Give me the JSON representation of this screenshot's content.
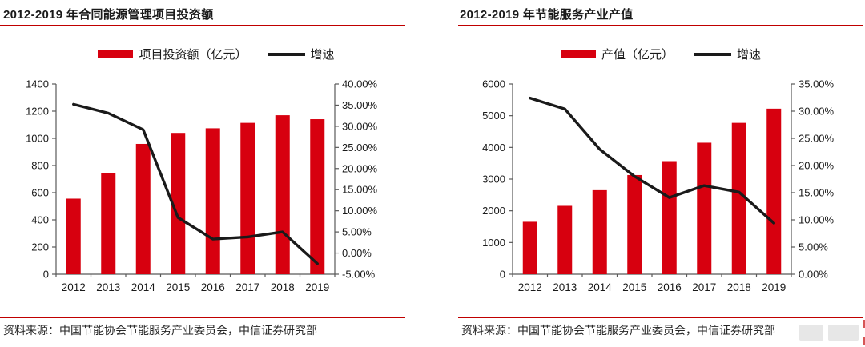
{
  "colors": {
    "bar_red": "#d7000f",
    "accent_red": "#c00000",
    "line_black": "#1a1a1a",
    "axis_gray": "#595959"
  },
  "panels": [
    {
      "title": "2012-2019 年合同能源管理项目投资额",
      "legend": [
        {
          "type": "bar",
          "label": "项目投资额（亿元）"
        },
        {
          "type": "line",
          "label": "增速"
        }
      ],
      "source": "资料来源：中国节能协会节能服务产业委员会，中信证券研究部"
    },
    {
      "title": "2012-2019 年节能服务产业产值",
      "legend": [
        {
          "type": "bar",
          "label": "产值（亿元）"
        },
        {
          "type": "line",
          "label": "增速"
        }
      ],
      "source": "资料来源：中国节能协会节能服务产业委员会，中信证券研究部"
    }
  ],
  "chart_data": [
    {
      "type": "bar+line",
      "title": "2012-2019 年合同能源管理项目投资额",
      "categories": [
        "2012",
        "2013",
        "2014",
        "2015",
        "2016",
        "2017",
        "2018",
        "2019"
      ],
      "series": [
        {
          "name": "项目投资额（亿元）",
          "type": "bar",
          "axis": "left",
          "values": [
            556,
            742,
            959,
            1040,
            1074,
            1114,
            1170,
            1141
          ]
        },
        {
          "name": "增速",
          "type": "line",
          "axis": "right",
          "values": [
            35.2,
            33.1,
            29.2,
            8.4,
            3.3,
            3.8,
            5.0,
            -2.5
          ]
        }
      ],
      "y_left": {
        "min": 0,
        "max": 1400,
        "step": 200,
        "ticks": [
          "0",
          "200",
          "400",
          "600",
          "800",
          "1000",
          "1200",
          "1400"
        ]
      },
      "y_right": {
        "min": -5,
        "max": 40,
        "step": 5,
        "ticks": [
          "-5.00%",
          "0.00%",
          "5.00%",
          "10.00%",
          "15.00%",
          "20.00%",
          "25.00%",
          "30.00%",
          "35.00%",
          "40.00%"
        ]
      },
      "legend_position": "top",
      "grid": false
    },
    {
      "type": "bar+line",
      "title": "2012-2019 年节能服务产业产值",
      "categories": [
        "2012",
        "2013",
        "2014",
        "2015",
        "2016",
        "2017",
        "2018",
        "2019"
      ],
      "series": [
        {
          "name": "产值（亿元）",
          "type": "bar",
          "axis": "left",
          "values": [
            1653,
            2156,
            2650,
            3127,
            3567,
            4148,
            4774,
            5222
          ]
        },
        {
          "name": "增速",
          "type": "line",
          "axis": "right",
          "values": [
            32.4,
            30.4,
            23.0,
            18.0,
            14.1,
            16.3,
            15.1,
            9.4
          ]
        }
      ],
      "y_left": {
        "min": 0,
        "max": 6000,
        "step": 1000,
        "ticks": [
          "0",
          "1000",
          "2000",
          "3000",
          "4000",
          "5000",
          "6000"
        ]
      },
      "y_right": {
        "min": 0,
        "max": 35,
        "step": 5,
        "ticks": [
          "0.00%",
          "5.00%",
          "10.00%",
          "15.00%",
          "20.00%",
          "25.00%",
          "30.00%",
          "35.00%"
        ]
      },
      "legend_position": "top",
      "grid": false
    }
  ]
}
